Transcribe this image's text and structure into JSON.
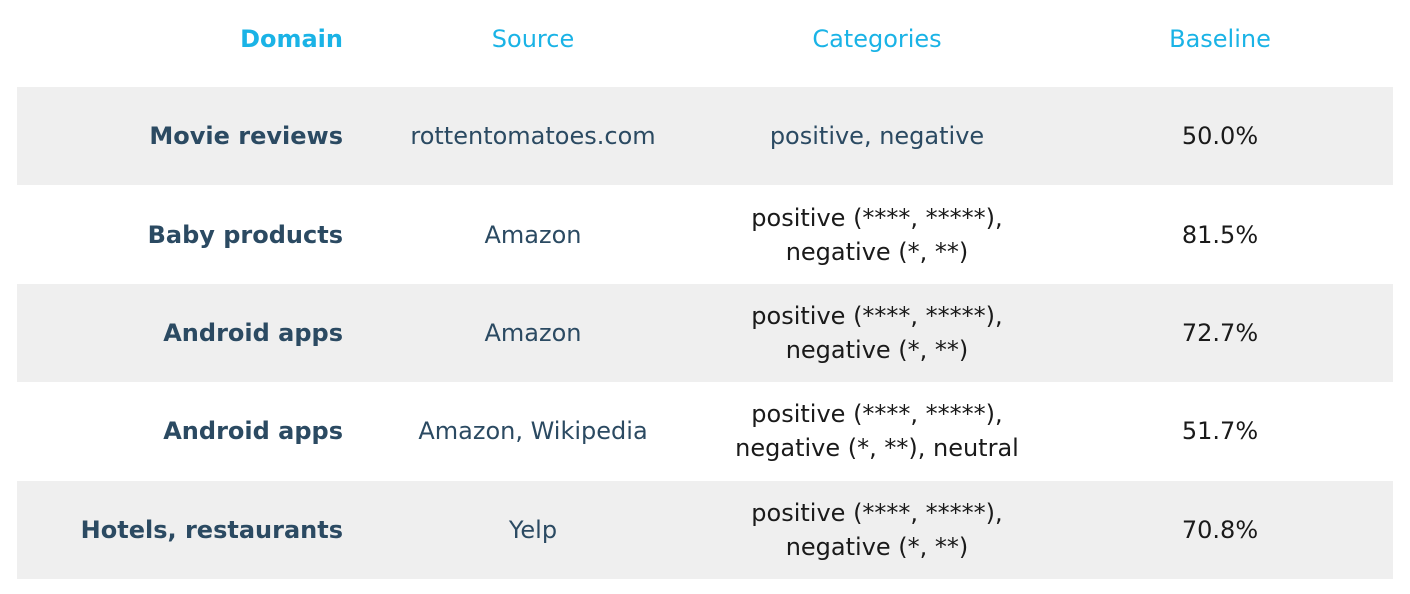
{
  "headers": {
    "domain": "Domain",
    "source": "Source",
    "categories": "Categories",
    "baseline": "Baseline"
  },
  "rows": [
    {
      "domain": "Movie reviews",
      "source": "rottentomatoes.com",
      "categories": [
        "positive, negative"
      ],
      "baseline": "50.0%"
    },
    {
      "domain": "Baby products",
      "source": "Amazon",
      "categories": [
        "positive (****, *****),",
        "negative (*, **)"
      ],
      "baseline": "81.5%"
    },
    {
      "domain": "Android apps",
      "source": "Amazon",
      "categories": [
        "positive (****, *****),",
        "negative (*, **)"
      ],
      "baseline": "72.7%"
    },
    {
      "domain": "Android apps",
      "source": "Amazon, Wikipedia",
      "categories": [
        "positive (****, *****),",
        "negative (*, **), neutral"
      ],
      "baseline": "51.7%"
    },
    {
      "domain": "Hotels, restaurants",
      "source": "Yelp",
      "categories": [
        "positive (****, *****),",
        "negative (*, **)"
      ],
      "baseline": "70.8%"
    }
  ],
  "colors": {
    "header_text": "#1ab3e6",
    "domain_text": "#2b4a62",
    "shaded_row": "#efefef"
  }
}
